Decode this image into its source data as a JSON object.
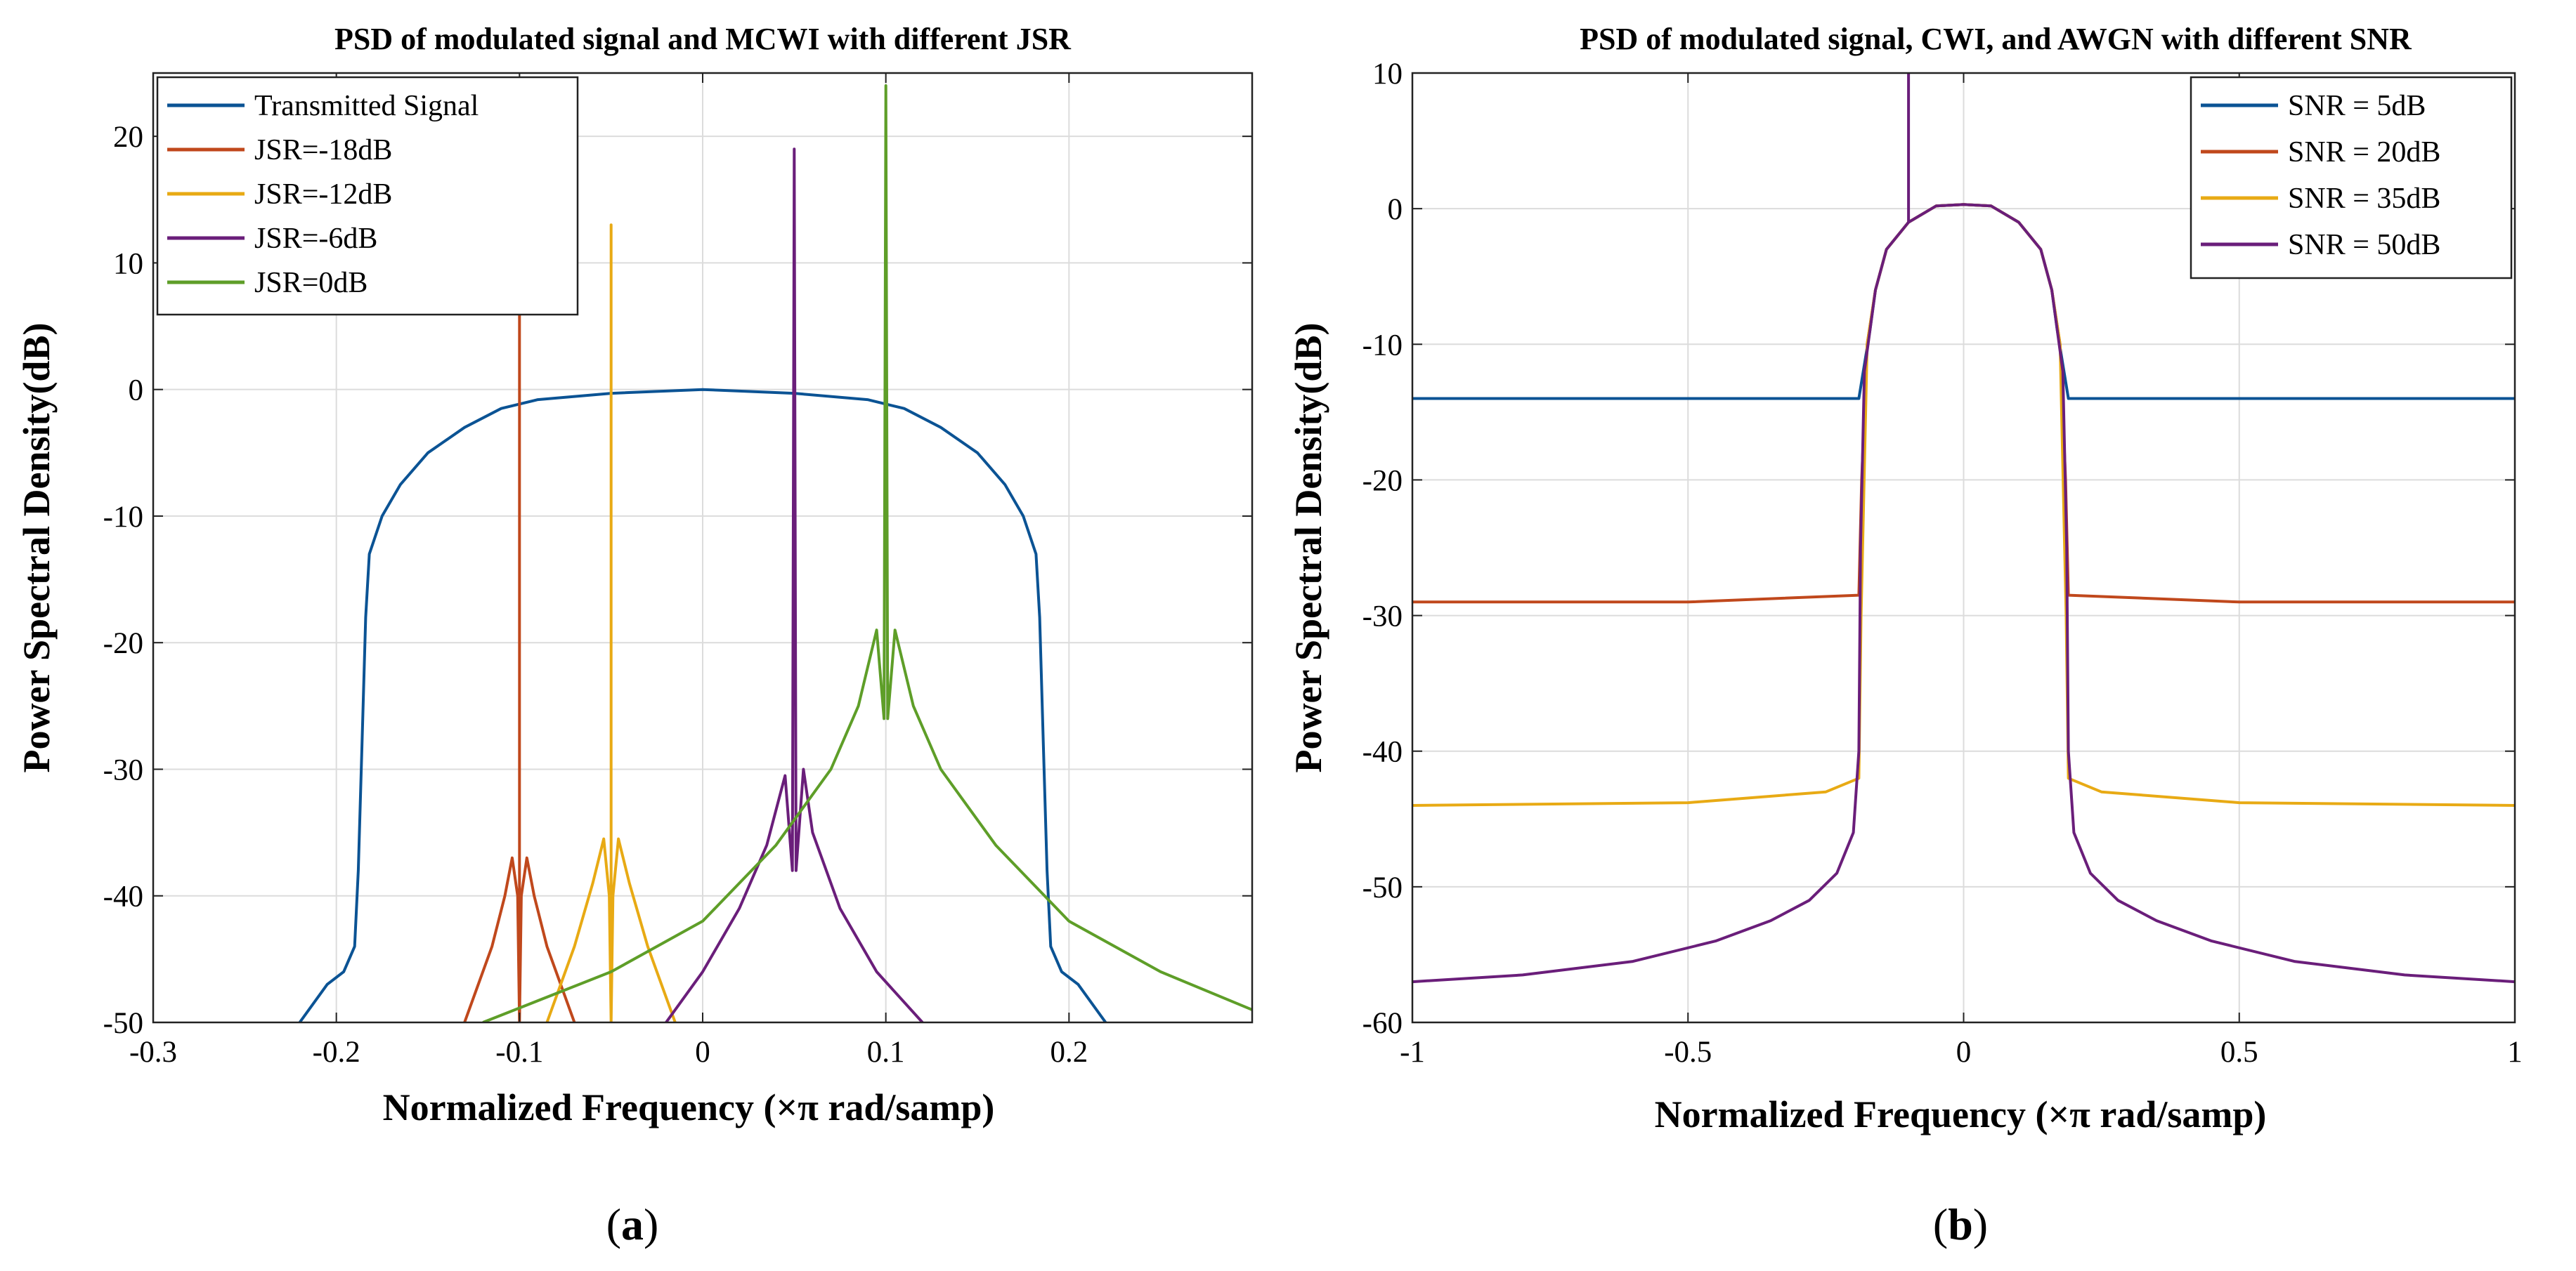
{
  "chart_data": [
    {
      "type": "line",
      "panel": "a",
      "caption": "(a)",
      "caption_parts": {
        "open": "(",
        "letter": "a",
        "close": ")"
      },
      "title": "PSD of modulated signal and MCWI with different JSR",
      "xlabel": "Normalized Frequency (×π rad/samp)",
      "ylabel": "Power Spectral Density(dB)",
      "xlim": [
        -0.3,
        0.3
      ],
      "ylim": [
        -50,
        25
      ],
      "xticks": [
        -0.3,
        -0.2,
        -0.1,
        0,
        0.1,
        0.2
      ],
      "xtick_labels": [
        "-0.3",
        "-0.2",
        "-0.1",
        "0",
        "0.1",
        "0.2"
      ],
      "yticks": [
        -50,
        -40,
        -30,
        -20,
        -10,
        0,
        10,
        20
      ],
      "ytick_labels": [
        "-50",
        "-40",
        "-30",
        "-20",
        "-10",
        "0",
        "10",
        "20"
      ],
      "grid": true,
      "legend_position": "top-left",
      "series": [
        {
          "name": "Transmitted Signal",
          "color": "#0B5394",
          "points": [
            [
              -0.22,
              -50
            ],
            [
              -0.205,
              -47
            ],
            [
              -0.196,
              -46
            ],
            [
              -0.19,
              -44
            ],
            [
              -0.188,
              -38
            ],
            [
              -0.186,
              -28
            ],
            [
              -0.184,
              -18
            ],
            [
              -0.182,
              -13
            ],
            [
              -0.175,
              -10
            ],
            [
              -0.165,
              -7.5
            ],
            [
              -0.15,
              -5
            ],
            [
              -0.13,
              -3
            ],
            [
              -0.11,
              -1.5
            ],
            [
              -0.09,
              -0.8
            ],
            [
              -0.05,
              -0.3
            ],
            [
              0,
              0
            ],
            [
              0.05,
              -0.3
            ],
            [
              0.09,
              -0.8
            ],
            [
              0.11,
              -1.5
            ],
            [
              0.13,
              -3
            ],
            [
              0.15,
              -5
            ],
            [
              0.165,
              -7.5
            ],
            [
              0.175,
              -10
            ],
            [
              0.182,
              -13
            ],
            [
              0.184,
              -18
            ],
            [
              0.186,
              -28
            ],
            [
              0.188,
              -38
            ],
            [
              0.19,
              -44
            ],
            [
              0.196,
              -46
            ],
            [
              0.205,
              -47
            ],
            [
              0.22,
              -50
            ]
          ]
        },
        {
          "name": "JSR=-18dB",
          "color": "#C0481C",
          "points": [
            [
              -0.13,
              -50
            ],
            [
              -0.115,
              -44
            ],
            [
              -0.108,
              -40
            ],
            [
              -0.104,
              -37
            ],
            [
              -0.101,
              -40
            ],
            [
              -0.1,
              -50
            ],
            [
              -0.1,
              6
            ],
            [
              -0.1,
              -50
            ],
            [
              -0.099,
              -40
            ],
            [
              -0.096,
              -37
            ],
            [
              -0.092,
              -40
            ],
            [
              -0.085,
              -44
            ],
            [
              -0.07,
              -50
            ]
          ]
        },
        {
          "name": "JSR=-12dB",
          "color": "#E8AA14",
          "points": [
            [
              -0.085,
              -50
            ],
            [
              -0.07,
              -44
            ],
            [
              -0.06,
              -39
            ],
            [
              -0.054,
              -35.5
            ],
            [
              -0.051,
              -40
            ],
            [
              -0.05,
              -50
            ],
            [
              -0.05,
              13
            ],
            [
              -0.05,
              -50
            ],
            [
              -0.049,
              -40
            ],
            [
              -0.046,
              -35.5
            ],
            [
              -0.04,
              -39
            ],
            [
              -0.03,
              -44
            ],
            [
              -0.015,
              -50
            ]
          ]
        },
        {
          "name": "JSR=-6dB",
          "color": "#6A1E7A",
          "points": [
            [
              -0.02,
              -50
            ],
            [
              0,
              -46
            ],
            [
              0.02,
              -41
            ],
            [
              0.035,
              -36
            ],
            [
              0.045,
              -30.5
            ],
            [
              0.049,
              -38
            ],
            [
              0.05,
              19
            ],
            [
              0.051,
              -38
            ],
            [
              0.055,
              -30
            ],
            [
              0.06,
              -35
            ],
            [
              0.075,
              -41
            ],
            [
              0.095,
              -46
            ],
            [
              0.12,
              -50
            ]
          ]
        },
        {
          "name": "JSR=0dB",
          "color": "#5E9E28",
          "points": [
            [
              -0.12,
              -50
            ],
            [
              -0.05,
              -46
            ],
            [
              0,
              -42
            ],
            [
              0.04,
              -36
            ],
            [
              0.07,
              -30
            ],
            [
              0.085,
              -25
            ],
            [
              0.095,
              -19
            ],
            [
              0.099,
              -26
            ],
            [
              0.1,
              24
            ],
            [
              0.101,
              -26
            ],
            [
              0.105,
              -19
            ],
            [
              0.115,
              -25
            ],
            [
              0.13,
              -30
            ],
            [
              0.16,
              -36
            ],
            [
              0.2,
              -42
            ],
            [
              0.25,
              -46
            ],
            [
              0.3,
              -49
            ]
          ]
        }
      ]
    },
    {
      "type": "line",
      "panel": "b",
      "caption": "(b)",
      "caption_parts": {
        "open": "(",
        "letter": "b",
        "close": ")"
      },
      "title": "PSD of modulated signal, CWI, and AWGN with different SNR",
      "xlabel": "Normalized Frequency (×π rad/samp)",
      "ylabel": "Power Spectral Density(dB)",
      "xlim": [
        -1,
        1
      ],
      "ylim": [
        -60,
        10
      ],
      "xticks": [
        -1,
        -0.5,
        0,
        0.5,
        1
      ],
      "xtick_labels": [
        "-1",
        "-0.5",
        "0",
        "0.5",
        "1"
      ],
      "yticks": [
        -60,
        -50,
        -40,
        -30,
        -20,
        -10,
        0,
        10
      ],
      "ytick_labels": [
        "-60",
        "-50",
        "-40",
        "-30",
        "-20",
        "-10",
        "0",
        "10"
      ],
      "grid": true,
      "legend_position": "top-right",
      "series": [
        {
          "name": "SNR = 5dB",
          "color": "#0B5394",
          "points": [
            [
              -1,
              -14
            ],
            [
              -0.5,
              -14
            ],
            [
              -0.19,
              -14
            ],
            [
              -0.17,
              -9
            ],
            [
              -0.16,
              -6
            ],
            [
              -0.14,
              -3
            ],
            [
              -0.1,
              -1
            ],
            [
              -0.05,
              0.2
            ],
            [
              0,
              0.3
            ],
            [
              0.05,
              0.2
            ],
            [
              0.1,
              -1
            ],
            [
              0.14,
              -3
            ],
            [
              0.16,
              -6
            ],
            [
              0.17,
              -9
            ],
            [
              0.19,
              -14
            ],
            [
              0.5,
              -14
            ],
            [
              1,
              -14
            ]
          ]
        },
        {
          "name": "SNR = 20dB",
          "color": "#C0481C",
          "points": [
            [
              -1,
              -29
            ],
            [
              -0.5,
              -29
            ],
            [
              -0.19,
              -28.5
            ],
            [
              -0.185,
              -20
            ],
            [
              -0.175,
              -10
            ],
            [
              -0.16,
              -6
            ],
            [
              -0.14,
              -3
            ],
            [
              -0.1,
              -1
            ],
            [
              -0.05,
              0.2
            ],
            [
              0,
              0.3
            ],
            [
              0.05,
              0.2
            ],
            [
              0.1,
              -1
            ],
            [
              0.14,
              -3
            ],
            [
              0.16,
              -6
            ],
            [
              0.175,
              -10
            ],
            [
              0.185,
              -20
            ],
            [
              0.19,
              -28.5
            ],
            [
              0.5,
              -29
            ],
            [
              1,
              -29
            ]
          ]
        },
        {
          "name": "SNR = 35dB",
          "color": "#E8AA14",
          "points": [
            [
              -1,
              -44
            ],
            [
              -0.5,
              -43.8
            ],
            [
              -0.25,
              -43
            ],
            [
              -0.19,
              -42
            ],
            [
              -0.186,
              -30
            ],
            [
              -0.175,
              -10
            ],
            [
              -0.16,
              -6
            ],
            [
              -0.14,
              -3
            ],
            [
              -0.1,
              -1
            ],
            [
              -0.05,
              0.2
            ],
            [
              0,
              0.3
            ],
            [
              0.05,
              0.2
            ],
            [
              0.1,
              -1
            ],
            [
              0.14,
              -3
            ],
            [
              0.16,
              -6
            ],
            [
              0.175,
              -10
            ],
            [
              0.186,
              -30
            ],
            [
              0.19,
              -42
            ],
            [
              0.25,
              -43
            ],
            [
              0.5,
              -43.8
            ],
            [
              1,
              -44
            ]
          ]
        },
        {
          "name": "SNR = 50dB",
          "color": "#6A1E7A",
          "points": [
            [
              -1,
              -57
            ],
            [
              -0.8,
              -56.5
            ],
            [
              -0.6,
              -55.5
            ],
            [
              -0.45,
              -54
            ],
            [
              -0.35,
              -52.5
            ],
            [
              -0.28,
              -51
            ],
            [
              -0.23,
              -49
            ],
            [
              -0.2,
              -46
            ],
            [
              -0.19,
              -40
            ],
            [
              -0.187,
              -25
            ],
            [
              -0.18,
              -12
            ],
            [
              -0.16,
              -6
            ],
            [
              -0.14,
              -3
            ],
            [
              -0.1,
              -1
            ],
            [
              -0.1,
              10
            ],
            [
              -0.1,
              -1
            ],
            [
              -0.05,
              0.2
            ],
            [
              0,
              0.3
            ],
            [
              0.05,
              0.2
            ],
            [
              0.1,
              -1
            ],
            [
              0.14,
              -3
            ],
            [
              0.16,
              -6
            ],
            [
              0.18,
              -12
            ],
            [
              0.187,
              -25
            ],
            [
              0.19,
              -40
            ],
            [
              0.2,
              -46
            ],
            [
              0.23,
              -49
            ],
            [
              0.28,
              -51
            ],
            [
              0.35,
              -52.5
            ],
            [
              0.45,
              -54
            ],
            [
              0.6,
              -55.5
            ],
            [
              0.8,
              -56.5
            ],
            [
              1,
              -57
            ]
          ]
        }
      ]
    }
  ]
}
